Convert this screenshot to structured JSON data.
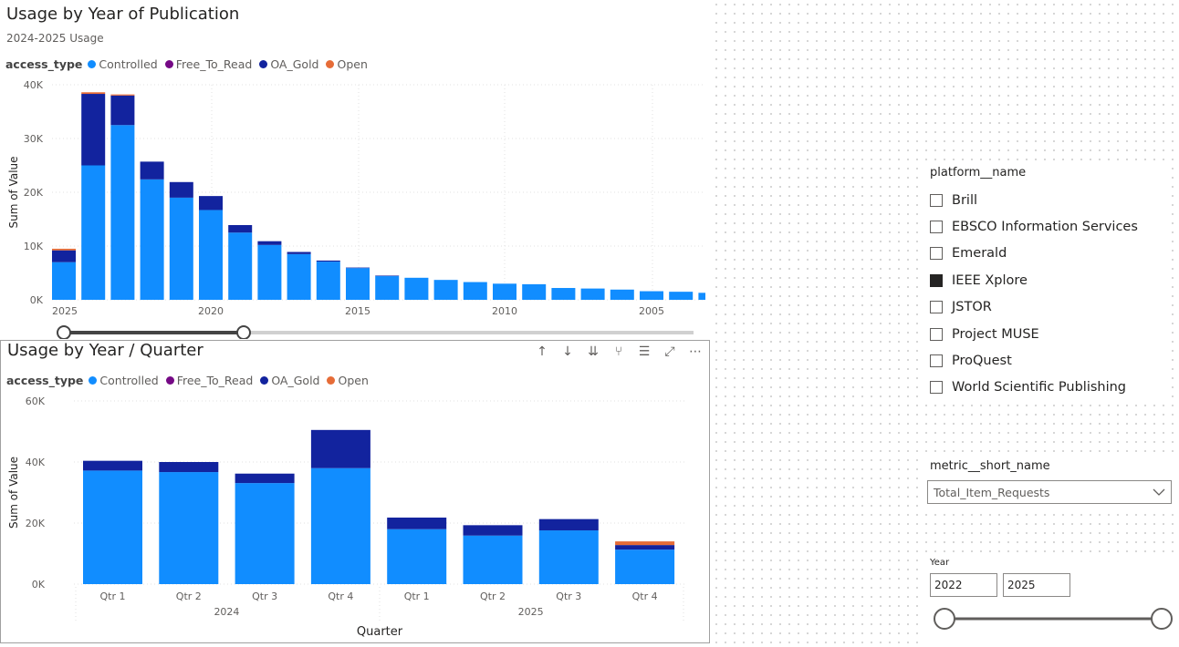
{
  "colors": {
    "Controlled": "#118dff",
    "Free_To_Read": "#750985",
    "OA_Gold": "#12239e",
    "Open": "#e66c37"
  },
  "chart1": {
    "title": "Usage by Year of Publication",
    "subtitle": "2024-2025 Usage",
    "legend_title": "access_type",
    "legend": [
      "Controlled",
      "Free_To_Read",
      "OA_Gold",
      "Open"
    ],
    "chart_data": {
      "type": "bar",
      "stacked": true,
      "title": "Usage by Year of Publication",
      "xlabel": "",
      "ylabel": "Sum of Value",
      "ylim": [
        0,
        40000
      ],
      "yticks": [
        "0K",
        "10K",
        "20K",
        "30K",
        "40K"
      ],
      "xtick_labels": [
        "2025",
        "2020",
        "2015",
        "2010",
        "2005"
      ],
      "categories": [
        "2025",
        "2024",
        "2023",
        "2022",
        "2021",
        "2020",
        "2019",
        "2018",
        "2017",
        "2016",
        "2015",
        "2014",
        "2013",
        "2012",
        "2011",
        "2010",
        "2009",
        "2008",
        "2007",
        "2006",
        "2005",
        "2004",
        "2003"
      ],
      "series": [
        {
          "name": "Controlled",
          "values": [
            7000,
            25000,
            32500,
            22400,
            19000,
            16700,
            12500,
            10200,
            8500,
            7100,
            5900,
            4400,
            4100,
            3700,
            3300,
            3000,
            2900,
            2200,
            2100,
            1900,
            1600,
            1500,
            1300
          ]
        },
        {
          "name": "Free_To_Read",
          "values": [
            0,
            0,
            0,
            0,
            0,
            0,
            0,
            0,
            0,
            0,
            0,
            0,
            0,
            0,
            0,
            0,
            0,
            0,
            0,
            0,
            0,
            0,
            0
          ]
        },
        {
          "name": "OA_Gold",
          "values": [
            2200,
            13300,
            5500,
            3300,
            2900,
            2600,
            1400,
            700,
            400,
            200,
            100,
            100,
            0,
            0,
            0,
            0,
            0,
            0,
            0,
            0,
            0,
            0,
            0
          ]
        },
        {
          "name": "Open",
          "values": [
            300,
            300,
            200,
            0,
            0,
            0,
            0,
            0,
            0,
            0,
            0,
            0,
            0,
            0,
            0,
            0,
            0,
            0,
            0,
            0,
            0,
            0,
            0
          ]
        }
      ]
    }
  },
  "chart2": {
    "title": "Usage by Year / Quarter",
    "legend_title": "access_type",
    "legend": [
      "Controlled",
      "Free_To_Read",
      "OA_Gold",
      "Open"
    ],
    "toolbar_icons": [
      "arrow-up-icon",
      "arrow-down-icon",
      "double-arrow-down-icon",
      "expand-hierarchy-icon",
      "filter-icon",
      "focus-mode-icon",
      "more-options-icon"
    ],
    "chart_data": {
      "type": "bar",
      "stacked": true,
      "title": "Usage by Year / Quarter",
      "xlabel": "Quarter",
      "ylabel": "Sum of Value",
      "ylim": [
        0,
        60000
      ],
      "yticks": [
        "0K",
        "20K",
        "40K",
        "60K"
      ],
      "categories": [
        "Qtr 1",
        "Qtr 2",
        "Qtr 3",
        "Qtr 4",
        "Qtr 1",
        "Qtr 2",
        "Qtr 3",
        "Qtr 4"
      ],
      "groups": [
        {
          "label": "2024",
          "count": 4
        },
        {
          "label": "2025",
          "count": 4
        }
      ],
      "series": [
        {
          "name": "Controlled",
          "values": [
            37200,
            36700,
            33100,
            38000,
            18000,
            15900,
            17600,
            11300
          ]
        },
        {
          "name": "Free_To_Read",
          "values": [
            0,
            0,
            0,
            0,
            0,
            0,
            0,
            0
          ]
        },
        {
          "name": "OA_Gold",
          "values": [
            3200,
            3300,
            3100,
            12500,
            3800,
            3400,
            3700,
            1500
          ]
        },
        {
          "name": "Open",
          "values": [
            0,
            0,
            0,
            0,
            0,
            0,
            0,
            1200
          ]
        }
      ]
    }
  },
  "platform_slicer": {
    "title": "platform__name",
    "items": [
      {
        "label": "Brill",
        "checked": false
      },
      {
        "label": "EBSCO Information Services",
        "checked": false
      },
      {
        "label": "Emerald",
        "checked": false
      },
      {
        "label": "IEEE Xplore",
        "checked": true
      },
      {
        "label": "JSTOR",
        "checked": false
      },
      {
        "label": "Project MUSE",
        "checked": false
      },
      {
        "label": "ProQuest",
        "checked": false
      },
      {
        "label": "World Scientific Publishing",
        "checked": false
      }
    ]
  },
  "metric_slicer": {
    "title": "metric__short_name",
    "selected": "Total_Item_Requests"
  },
  "year_slicer": {
    "title": "Year",
    "from": "2022",
    "to": "2025"
  }
}
